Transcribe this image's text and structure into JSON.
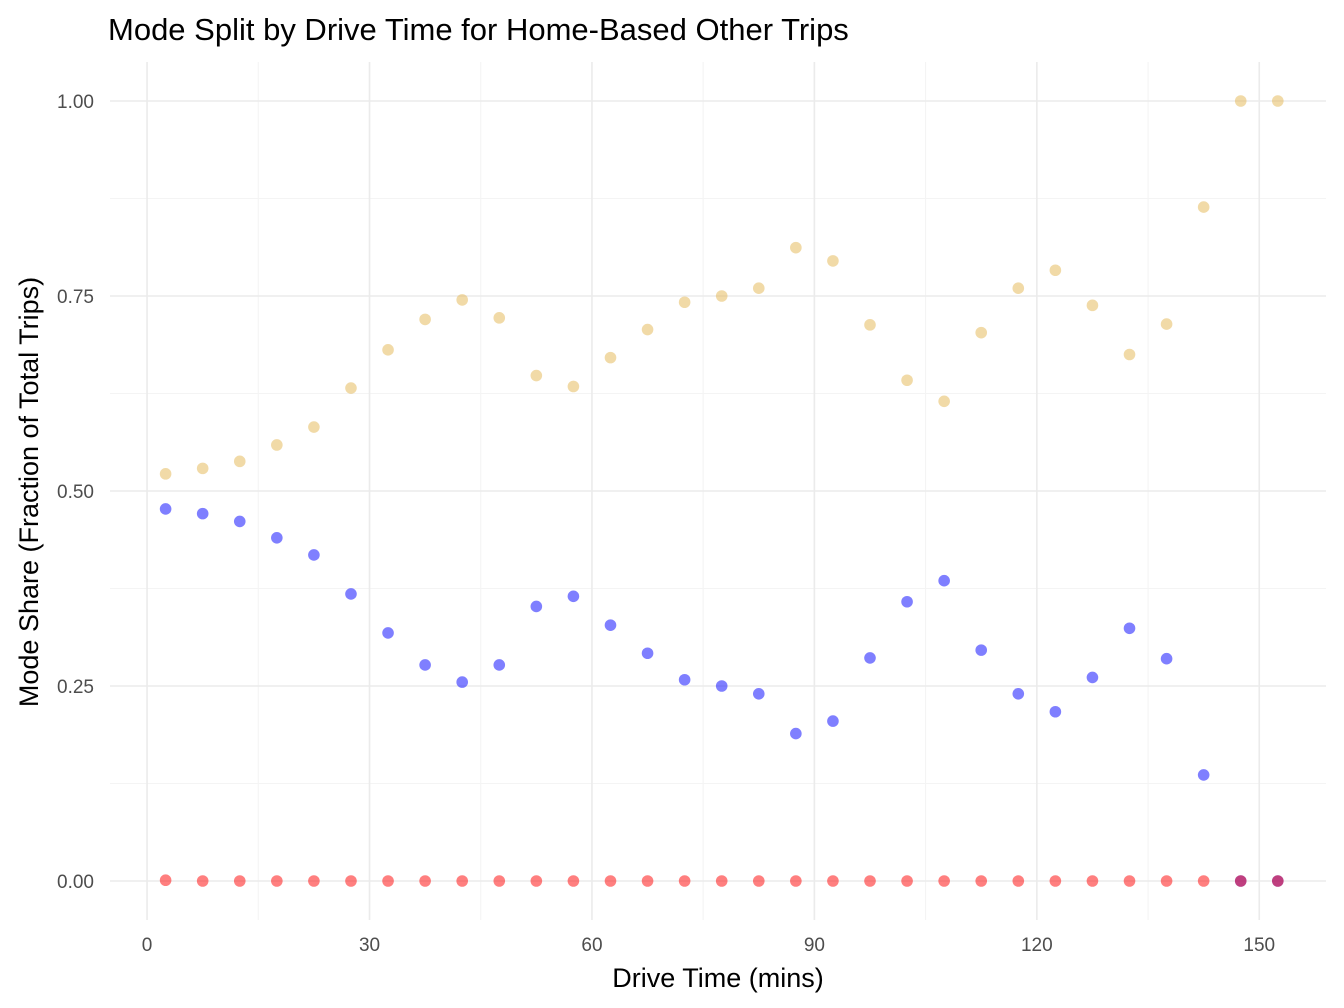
{
  "chart_data": {
    "type": "scatter",
    "title": "Mode Split by Drive Time for Home-Based Other Trips",
    "xlabel": "Drive Time (mins)",
    "ylabel": "Mode Share (Fraction of Total Trips)",
    "xlim": [
      -5,
      159
    ],
    "ylim": [
      -0.05,
      1.05
    ],
    "x_ticks": [
      0,
      30,
      60,
      90,
      120,
      150
    ],
    "x_tick_labels": [
      "0",
      "30",
      "60",
      "90",
      "120",
      "150"
    ],
    "y_ticks": [
      0,
      0.25,
      0.5,
      0.75,
      1.0
    ],
    "y_tick_labels": [
      "0.00",
      "0.25",
      "0.50",
      "0.75",
      "1.00"
    ],
    "grid": true,
    "legend": "none",
    "x": [
      2.5,
      7.5,
      12.5,
      17.5,
      22.5,
      27.5,
      32.5,
      37.5,
      42.5,
      47.5,
      52.5,
      57.5,
      62.5,
      67.5,
      72.5,
      77.5,
      82.5,
      87.5,
      92.5,
      97.5,
      102.5,
      107.5,
      112.5,
      117.5,
      122.5,
      127.5,
      132.5,
      137.5,
      142.5,
      147.5,
      152.5
    ],
    "series": [
      {
        "color": "#e3b64f",
        "values": [
          0.522,
          0.529,
          0.538,
          0.559,
          0.582,
          0.632,
          0.681,
          0.72,
          0.745,
          0.722,
          0.648,
          0.634,
          0.671,
          0.707,
          0.742,
          0.75,
          0.76,
          0.812,
          0.795,
          0.713,
          0.642,
          0.615,
          0.703,
          0.76,
          0.783,
          0.738,
          0.675,
          0.714,
          0.864,
          1.0,
          1.0
        ]
      },
      {
        "color": "#0000ff",
        "values": [
          0.477,
          0.471,
          0.461,
          0.44,
          0.418,
          0.368,
          0.318,
          0.277,
          0.255,
          0.277,
          0.352,
          0.365,
          0.328,
          0.292,
          0.258,
          0.25,
          0.24,
          0.189,
          0.205,
          0.286,
          0.358,
          0.385,
          0.296,
          0.24,
          0.217,
          0.261,
          0.324,
          0.285,
          0.136,
          0.0,
          0.0
        ]
      },
      {
        "color": "#ff0000",
        "values": [
          0.001,
          0.0,
          0.0,
          0.0,
          0.0,
          0.0,
          0.0,
          0.0,
          0.0,
          0.0,
          0.0,
          0.0,
          0.0,
          0.0,
          0.0,
          0.0,
          0.0,
          0.0,
          0.0,
          0.0,
          0.0,
          0.0,
          0.0,
          0.0,
          0.0,
          0.0,
          0.0,
          0.0,
          0.0,
          0.0,
          0.0
        ]
      }
    ],
    "point_opacity": 0.5
  }
}
